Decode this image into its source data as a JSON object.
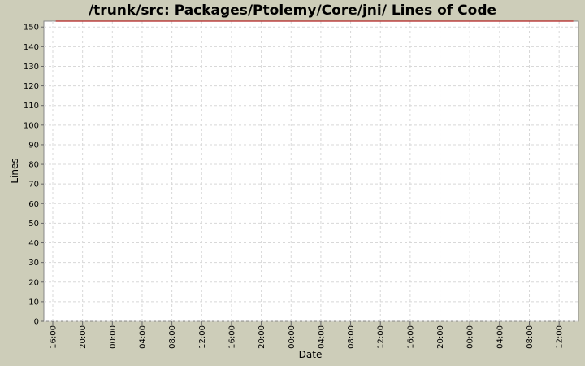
{
  "chart_data": {
    "type": "line",
    "title": "/trunk/src: Packages/Ptolemy/Core/jni/ Lines of Code",
    "xlabel": "Date",
    "ylabel": "Lines",
    "ylim": [
      0,
      153
    ],
    "y_ticks": [
      0,
      10,
      20,
      30,
      40,
      50,
      60,
      70,
      80,
      90,
      100,
      110,
      120,
      130,
      140,
      150
    ],
    "x_ticks": [
      "16:00",
      "20:00",
      "00:00",
      "04:00",
      "08:00",
      "12:00",
      "16:00",
      "20:00",
      "00:00",
      "04:00",
      "08:00",
      "12:00",
      "16:00",
      "20:00",
      "00:00",
      "04:00",
      "08:00",
      "12:00"
    ],
    "x_range_hours": [
      -1.2,
      70.6
    ],
    "grid": true,
    "series": [
      {
        "x_hours": [
          0.4,
          69.9
        ],
        "values": [
          153,
          153
        ],
        "color": "#b22222"
      }
    ]
  },
  "colors": {
    "background": "#cdcdb9",
    "plot_background": "#ffffff",
    "grid": "#d8d8d8",
    "series": "#b22222"
  }
}
